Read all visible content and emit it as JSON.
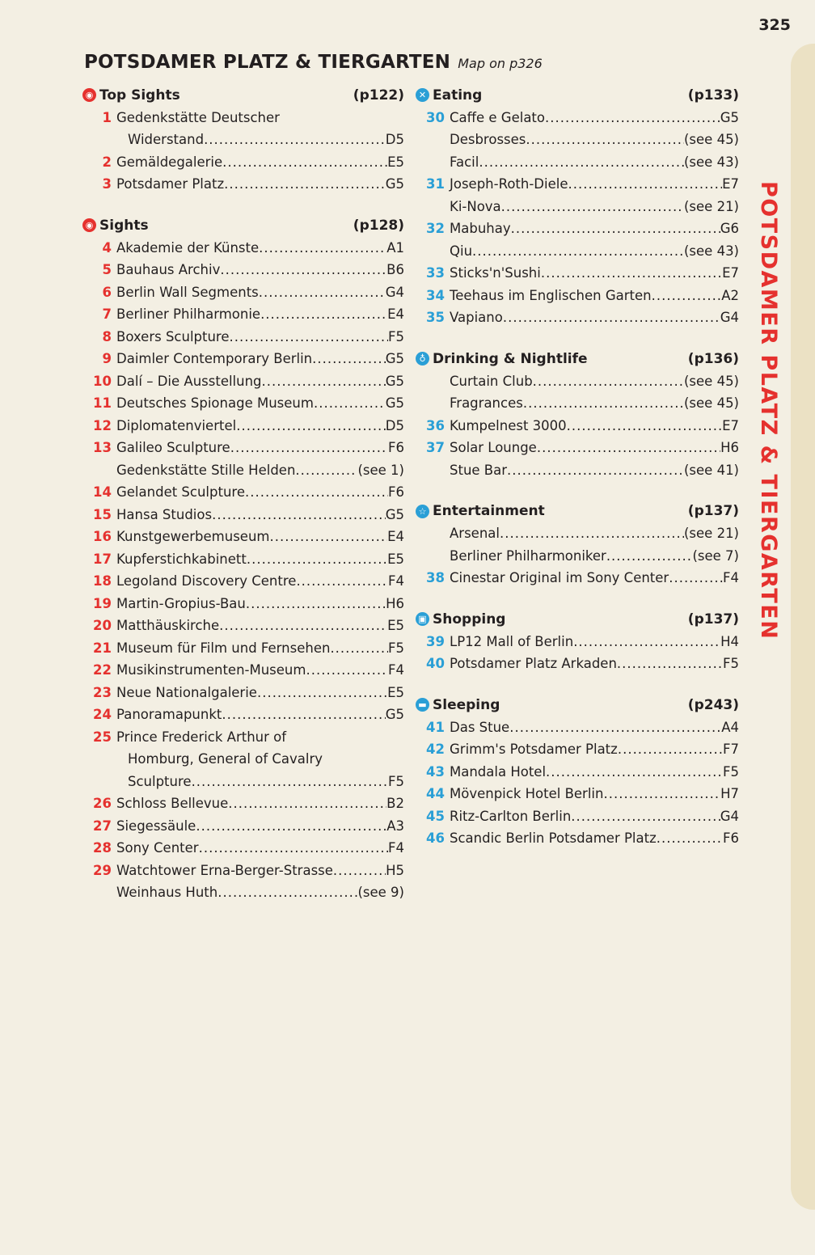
{
  "page_number": "325",
  "title": "POTSDAMER PLATZ & TIERGARTEN",
  "map_ref": "Map on p326",
  "side_title": "POTSDAMER PLATZ & TIERGARTEN",
  "colors": {
    "red": "#e5312e",
    "blue": "#2a9fd6",
    "paper": "#f3efe3",
    "tab": "#ebe1c4"
  },
  "left": [
    {
      "label": "Top Sights",
      "page": "(p122)",
      "icon": "eye-icon",
      "color": "red",
      "entries": [
        {
          "num": "1",
          "pre": "Gedenkstätte Deutscher",
          "name": "Widerstand",
          "ref": "D5"
        },
        {
          "num": "2",
          "name": "Gemäldegalerie",
          "ref": "E5"
        },
        {
          "num": "3",
          "name": "Potsdamer Platz",
          "ref": "G5"
        }
      ]
    },
    {
      "label": "Sights",
      "page": "(p128)",
      "icon": "eye-icon",
      "color": "red",
      "entries": [
        {
          "num": "4",
          "name": "Akademie der Künste",
          "ref": "A1"
        },
        {
          "num": "5",
          "name": "Bauhaus Archiv",
          "ref": "B6"
        },
        {
          "num": "6",
          "name": "Berlin Wall Segments",
          "ref": "G4"
        },
        {
          "num": "7",
          "name": "Berliner Philharmonie",
          "ref": "E4"
        },
        {
          "num": "8",
          "name": "Boxers Sculpture",
          "ref": "F5"
        },
        {
          "num": "9",
          "name": "Daimler Contemporary Berlin",
          "ref": "G5"
        },
        {
          "num": "10",
          "name": "Dalí – Die Ausstellung",
          "ref": "G5"
        },
        {
          "num": "11",
          "name": "Deutsches Spionage Museum",
          "ref": "G5"
        },
        {
          "num": "12",
          "name": "Diplomatenviertel",
          "ref": "D5"
        },
        {
          "num": "13",
          "name": "Galileo Sculpture",
          "ref": "F6"
        },
        {
          "num": "",
          "name": "Gedenkstätte Stille Helden",
          "ref": "(see 1)"
        },
        {
          "num": "14",
          "name": "Gelandet Sculpture",
          "ref": "F6"
        },
        {
          "num": "15",
          "name": "Hansa Studios",
          "ref": "G5"
        },
        {
          "num": "16",
          "name": "Kunstgewerbemuseum",
          "ref": "E4"
        },
        {
          "num": "17",
          "name": "Kupferstichkabinett",
          "ref": "E5"
        },
        {
          "num": "18",
          "name": "Legoland Discovery Centre",
          "ref": "F4"
        },
        {
          "num": "19",
          "name": "Martin-Gropius-Bau",
          "ref": "H6"
        },
        {
          "num": "20",
          "name": "Matthäuskirche",
          "ref": "E5"
        },
        {
          "num": "21",
          "name": "Museum für Film und Fernsehen",
          "ref": "F5"
        },
        {
          "num": "22",
          "name": "Musikinstrumenten-Museum",
          "ref": "F4"
        },
        {
          "num": "23",
          "name": "Neue Nationalgalerie",
          "ref": "E5"
        },
        {
          "num": "24",
          "name": "Panoramapunkt",
          "ref": "G5"
        },
        {
          "num": "25",
          "pre": "Prince Frederick Arthur of",
          "pre2": "Homburg, General of Cavalry",
          "name": "Sculpture",
          "ref": "F5"
        },
        {
          "num": "26",
          "name": "Schloss Bellevue",
          "ref": "B2"
        },
        {
          "num": "27",
          "name": "Siegessäule",
          "ref": "A3"
        },
        {
          "num": "28",
          "name": "Sony Center",
          "ref": "F4"
        },
        {
          "num": "29",
          "name": "Watchtower Erna-Berger-Strasse",
          "ref": "H5"
        },
        {
          "num": "",
          "name": "Weinhaus Huth",
          "ref": "(see 9)"
        }
      ]
    }
  ],
  "right": [
    {
      "label": "Eating",
      "page": "(p133)",
      "icon": "fork-knife-icon",
      "color": "blue",
      "entries": [
        {
          "num": "30",
          "name": "Caffe e Gelato",
          "ref": "G5"
        },
        {
          "num": "",
          "name": "Desbrosses",
          "ref": "(see 45)"
        },
        {
          "num": "",
          "name": "Facil",
          "ref": "(see 43)"
        },
        {
          "num": "31",
          "name": "Joseph-Roth-Diele",
          "ref": "E7"
        },
        {
          "num": "",
          "name": "Ki-Nova",
          "ref": "(see 21)"
        },
        {
          "num": "32",
          "name": "Mabuhay",
          "ref": "G6"
        },
        {
          "num": "",
          "name": "Qiu",
          "ref": "(see 43)"
        },
        {
          "num": "33",
          "name": "Sticks'n'Sushi",
          "ref": "E7"
        },
        {
          "num": "34",
          "name": "Teehaus im Englischen Garten",
          "ref": "A2"
        },
        {
          "num": "35",
          "name": "Vapiano",
          "ref": "G4"
        }
      ]
    },
    {
      "label": "Drinking & Nightlife",
      "page": "(p136)",
      "icon": "glass-icon",
      "color": "blue",
      "entries": [
        {
          "num": "",
          "name": "Curtain Club",
          "ref": "(see 45)"
        },
        {
          "num": "",
          "name": "Fragrances",
          "ref": "(see 45)"
        },
        {
          "num": "36",
          "name": "Kumpelnest 3000",
          "ref": "E7"
        },
        {
          "num": "37",
          "name": "Solar Lounge",
          "ref": "H6"
        },
        {
          "num": "",
          "name": "Stue Bar",
          "ref": "(see 41)"
        }
      ]
    },
    {
      "label": "Entertainment",
      "page": "(p137)",
      "icon": "star-icon",
      "color": "blue",
      "entries": [
        {
          "num": "",
          "name": "Arsenal",
          "ref": "(see 21)"
        },
        {
          "num": "",
          "name": "Berliner Philharmoniker",
          "ref": "(see 7)"
        },
        {
          "num": "38",
          "name": "Cinestar Original im Sony Center",
          "ref": "F4"
        }
      ]
    },
    {
      "label": "Shopping",
      "page": "(p137)",
      "icon": "shopping-bag-icon",
      "color": "blue",
      "entries": [
        {
          "num": "39",
          "name": "LP12 Mall of Berlin",
          "ref": "H4"
        },
        {
          "num": "40",
          "name": "Potsdamer Platz Arkaden",
          "ref": "F5"
        }
      ]
    },
    {
      "label": "Sleeping",
      "page": "(p243)",
      "icon": "bed-icon",
      "color": "blue",
      "entries": [
        {
          "num": "41",
          "name": "Das Stue",
          "ref": "A4"
        },
        {
          "num": "42",
          "name": "Grimm's Potsdamer Platz",
          "ref": "F7"
        },
        {
          "num": "43",
          "name": "Mandala Hotel",
          "ref": "F5"
        },
        {
          "num": "44",
          "name": "Mövenpick Hotel Berlin",
          "ref": "H7"
        },
        {
          "num": "45",
          "name": "Ritz-Carlton Berlin",
          "ref": "G4"
        },
        {
          "num": "46",
          "name": "Scandic Berlin Potsdamer Platz",
          "ref": "F6"
        }
      ]
    }
  ]
}
